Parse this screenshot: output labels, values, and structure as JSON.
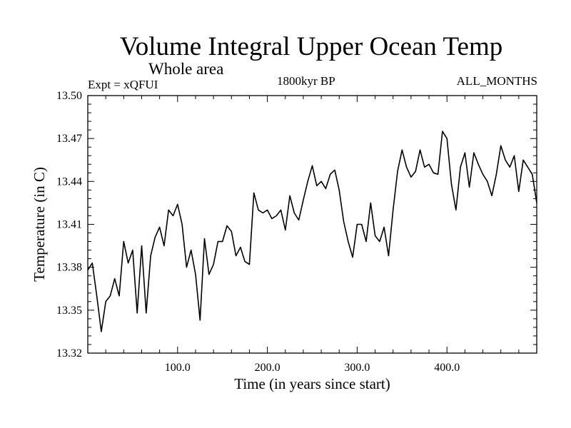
{
  "chart_data": {
    "type": "line",
    "title": "Volume Integral Upper Ocean Temp",
    "subtitle": "Whole area",
    "annotations": {
      "left": "Expt = xQFUI",
      "center": "1800kyr BP",
      "right": "ALL_MONTHS"
    },
    "xlabel": "Time (in years since start)",
    "ylabel": "Temperature (in C)",
    "xlim": [
      0,
      500
    ],
    "ylim": [
      13.32,
      13.5
    ],
    "xticks": [
      100,
      200,
      300,
      400
    ],
    "xtick_labels": [
      "100.0",
      "200.0",
      "300.0",
      "400.0"
    ],
    "yticks": [
      13.32,
      13.35,
      13.38,
      13.41,
      13.44,
      13.47,
      13.5
    ],
    "ytick_labels": [
      "13.32",
      "13.35",
      "13.38",
      "13.41",
      "13.44",
      "13.47",
      "13.50"
    ],
    "series": [
      {
        "name": "Temperature",
        "x": [
          0,
          5,
          10,
          15,
          20,
          25,
          30,
          35,
          40,
          45,
          50,
          55,
          60,
          65,
          70,
          75,
          80,
          85,
          90,
          95,
          100,
          105,
          110,
          115,
          120,
          125,
          130,
          135,
          140,
          145,
          150,
          155,
          160,
          165,
          170,
          175,
          180,
          185,
          190,
          195,
          200,
          205,
          210,
          215,
          220,
          225,
          230,
          235,
          240,
          245,
          250,
          255,
          260,
          265,
          270,
          275,
          280,
          285,
          290,
          295,
          300,
          305,
          310,
          315,
          320,
          325,
          330,
          335,
          340,
          345,
          350,
          355,
          360,
          365,
          370,
          375,
          380,
          385,
          390,
          395,
          400,
          405,
          410,
          415,
          420,
          425,
          430,
          435,
          440,
          445,
          450,
          455,
          460,
          465,
          470,
          475,
          480,
          485,
          490,
          495,
          500
        ],
        "values": [
          13.378,
          13.383,
          13.36,
          13.335,
          13.356,
          13.36,
          13.372,
          13.36,
          13.398,
          13.383,
          13.392,
          13.348,
          13.395,
          13.348,
          13.388,
          13.401,
          13.408,
          13.395,
          13.42,
          13.416,
          13.424,
          13.41,
          13.38,
          13.392,
          13.375,
          13.343,
          13.4,
          13.375,
          13.382,
          13.398,
          13.398,
          13.409,
          13.405,
          13.388,
          13.394,
          13.384,
          13.382,
          13.432,
          13.42,
          13.418,
          13.42,
          13.414,
          13.416,
          13.42,
          13.406,
          13.43,
          13.418,
          13.413,
          13.427,
          13.44,
          13.451,
          13.437,
          13.44,
          13.435,
          13.445,
          13.448,
          13.434,
          13.412,
          13.398,
          13.387,
          13.41,
          13.41,
          13.398,
          13.425,
          13.402,
          13.398,
          13.408,
          13.388,
          13.42,
          13.447,
          13.462,
          13.45,
          13.443,
          13.447,
          13.462,
          13.45,
          13.452,
          13.446,
          13.445,
          13.475,
          13.47,
          13.438,
          13.42,
          13.45,
          13.46,
          13.436,
          13.46,
          13.452,
          13.445,
          13.44,
          13.43,
          13.445,
          13.465,
          13.455,
          13.45,
          13.458,
          13.433,
          13.455,
          13.45,
          13.445,
          13.425
        ]
      }
    ],
    "grid": false
  }
}
